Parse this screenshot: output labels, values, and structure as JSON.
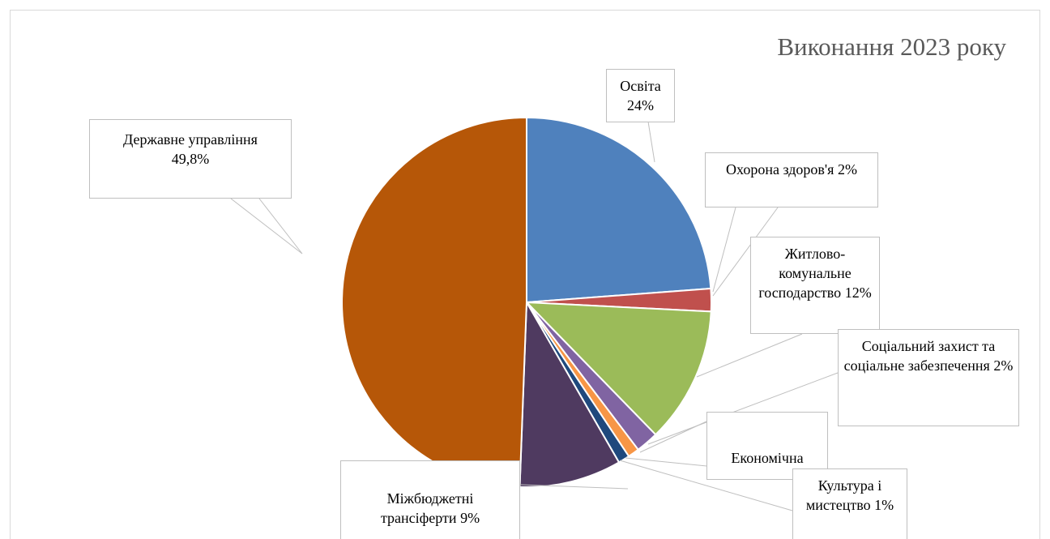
{
  "chart_data": {
    "type": "pie",
    "title": "Виконання 2023 року",
    "categories": [
      "Освіта",
      "Охорона здоров'я",
      "Житлово-комунальне господарство",
      "Соціальний захист та соціальне забезпечення",
      "Економічна",
      "Культура і мистецтво",
      "Міжбюджетні трансіферти",
      "Державне управління"
    ],
    "values": [
      24,
      2,
      12,
      2,
      1,
      1,
      9,
      49.8
    ],
    "value_labels": [
      "24%",
      "2%",
      "12%",
      "2%",
      null,
      "1%",
      "9%",
      "49,8%"
    ],
    "colors": [
      "#4f81bd",
      "#c0504d",
      "#9bbb59",
      "#8064a2",
      "#f79646",
      "#1f497d",
      "#4f3a60",
      "#b65708"
    ]
  }
}
